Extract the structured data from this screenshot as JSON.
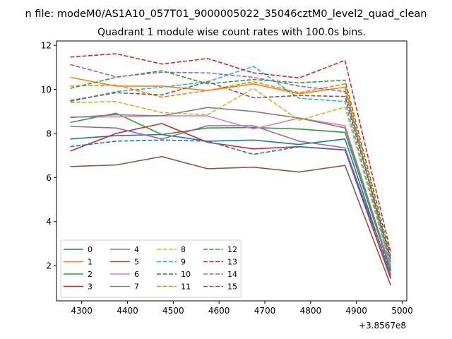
{
  "figure": {
    "suptitle": "n file: modeM0/AS1A10_057T01_9000005022_35046cztM0_level2_quad_clean",
    "title": "Quadrant 1 module wise count rates with 100.0s bins."
  },
  "chart_data": {
    "type": "line",
    "title": "Quadrant 1 module wise count rates with 100.0s bins.",
    "xlabel": "",
    "ylabel": "",
    "x_offset_label": "+3.8567e8",
    "xlim": [
      4245,
      5010
    ],
    "ylim": [
      0.4,
      12.2
    ],
    "xticks": [
      4300,
      4400,
      4500,
      4600,
      4700,
      4800,
      4900,
      5000
    ],
    "yticks": [
      2,
      4,
      6,
      8,
      10,
      12
    ],
    "grid": false,
    "legend": {
      "placement": "lower-left",
      "columns": 4
    },
    "x": [
      4275,
      4375,
      4475,
      4575,
      4675,
      4775,
      4875,
      4975
    ],
    "series": [
      {
        "name": "0",
        "color": "#1f77b4",
        "dash": "solid",
        "values": [
          7.75,
          7.9,
          7.95,
          7.65,
          7.7,
          7.5,
          7.75,
          1.5
        ]
      },
      {
        "name": "1",
        "color": "#ff7f0e",
        "dash": "solid",
        "values": [
          10.55,
          10.15,
          10.15,
          9.95,
          10.25,
          9.8,
          10.1,
          1.9
        ]
      },
      {
        "name": "2",
        "color": "#2ca02c",
        "dash": "solid",
        "values": [
          8.5,
          8.92,
          7.95,
          8.25,
          8.27,
          8.2,
          8.05,
          1.75
        ]
      },
      {
        "name": "3",
        "color": "#d62728",
        "dash": "solid",
        "values": [
          7.2,
          8.0,
          8.45,
          7.6,
          7.3,
          7.4,
          7.25,
          1.4
        ]
      },
      {
        "name": "4",
        "color": "#9467bd",
        "dash": "solid",
        "values": [
          8.32,
          8.25,
          7.75,
          8.35,
          8.35,
          7.65,
          7.35,
          1.6
        ]
      },
      {
        "name": "5",
        "color": "#8c564b",
        "dash": "solid",
        "values": [
          6.5,
          6.57,
          6.95,
          6.4,
          6.47,
          6.25,
          6.55,
          1.1
        ]
      },
      {
        "name": "6",
        "color": "#e377c2",
        "dash": "solid",
        "values": [
          8.75,
          8.75,
          8.8,
          8.8,
          8.2,
          8.7,
          8.35,
          1.85
        ]
      },
      {
        "name": "7",
        "color": "#7f7f7f",
        "dash": "solid",
        "values": [
          8.72,
          8.85,
          8.8,
          9.18,
          9.0,
          8.7,
          8.25,
          1.8
        ]
      },
      {
        "name": "8",
        "color": "#bcbd22",
        "dash": "dashed",
        "values": [
          9.4,
          9.45,
          8.95,
          8.85,
          10.05,
          8.6,
          9.2,
          1.95
        ]
      },
      {
        "name": "9",
        "color": "#17becf",
        "dash": "dashed",
        "values": [
          9.45,
          9.9,
          10.1,
          10.35,
          11.05,
          9.6,
          9.45,
          2.0
        ]
      },
      {
        "name": "10",
        "color": "#1f77b4",
        "dash": "dashed",
        "values": [
          7.4,
          7.65,
          7.7,
          7.65,
          7.05,
          7.4,
          7.25,
          1.7
        ]
      },
      {
        "name": "11",
        "color": "#ff7f0e",
        "dash": "dashed",
        "values": [
          10.15,
          10.2,
          9.65,
          9.95,
          10.35,
          9.85,
          10.25,
          2.2
        ]
      },
      {
        "name": "12",
        "color": "#2ca02c",
        "dash": "dashed",
        "values": [
          10.05,
          10.55,
          10.85,
          10.25,
          10.45,
          10.3,
          10.42,
          2.4
        ]
      },
      {
        "name": "13",
        "color": "#d62728",
        "dash": "dashed",
        "values": [
          11.47,
          11.62,
          11.15,
          11.4,
          10.75,
          10.52,
          11.32,
          2.6
        ]
      },
      {
        "name": "14",
        "color": "#9467bd",
        "dash": "dashed",
        "values": [
          11.13,
          10.57,
          10.78,
          10.75,
          10.55,
          10.15,
          9.9,
          2.15
        ]
      },
      {
        "name": "15",
        "color": "#8c564b",
        "dash": "dashed",
        "values": [
          9.5,
          9.85,
          9.75,
          10.35,
          9.62,
          9.72,
          9.68,
          2.3
        ]
      }
    ]
  }
}
